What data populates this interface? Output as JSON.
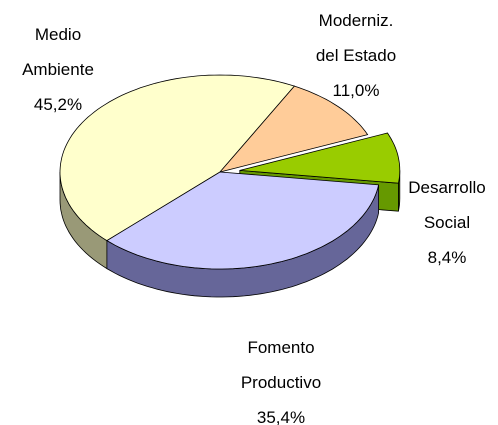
{
  "chart_data": {
    "type": "pie",
    "categories": [
      "Medio Ambiente",
      "Moderniz. del Estado",
      "Desarrollo Social",
      "Fomento Productivo"
    ],
    "values": [
      45.2,
      11.0,
      8.4,
      35.4
    ],
    "value_labels": [
      "45,2%",
      "11,0%",
      "8,4%",
      "35,4%"
    ],
    "colors": [
      "#ffffcc",
      "#ffcc99",
      "#99cc00",
      "#ccccff"
    ],
    "side_colors": [
      "#999977",
      "#cc9966",
      "#669900",
      "#666699"
    ],
    "exploded": [
      false,
      false,
      true,
      false
    ]
  }
}
